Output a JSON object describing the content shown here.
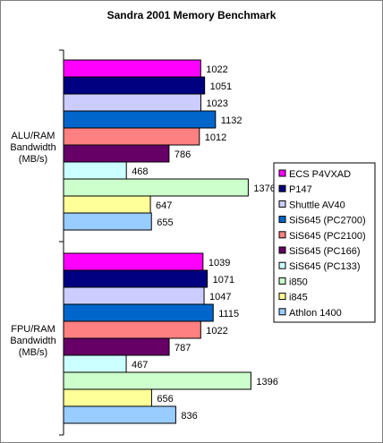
{
  "chart_data": {
    "type": "bar",
    "orientation": "horizontal",
    "title": "Sandra 2001 Memory Benchmark",
    "groups": [
      {
        "label": [
          "ALU/RAM",
          "Bandwidth",
          "(MB/s)"
        ]
      },
      {
        "label": [
          "FPU/RAM",
          "Bandwidth",
          "(MB/s)"
        ]
      }
    ],
    "series": [
      {
        "name": "ECS P4VXAD",
        "color": "#ff00ff",
        "values": [
          1022,
          1039
        ]
      },
      {
        "name": "P147",
        "color": "#000080",
        "values": [
          1051,
          1071
        ]
      },
      {
        "name": "Shuttle AV40",
        "color": "#ccccff",
        "values": [
          1023,
          1047
        ]
      },
      {
        "name": "SiS645 (PC2700)",
        "color": "#0066cc",
        "values": [
          1132,
          1115
        ]
      },
      {
        "name": "SiS645 (PC2100)",
        "color": "#ff8080",
        "values": [
          1012,
          1022
        ]
      },
      {
        "name": "SiS645 (PC166)",
        "color": "#660066",
        "values": [
          786,
          787
        ]
      },
      {
        "name": "SiS645 (PC133)",
        "color": "#ccffff",
        "values": [
          468,
          467
        ]
      },
      {
        "name": "i850",
        "color": "#ccffcc",
        "values": [
          1376,
          1396
        ]
      },
      {
        "name": "i845",
        "color": "#ffff99",
        "values": [
          647,
          656
        ]
      },
      {
        "name": "Athlon 1400",
        "color": "#99ccff",
        "values": [
          655,
          836
        ]
      }
    ],
    "xlim": [
      0,
      1600
    ],
    "grid": false,
    "legend_position": "right"
  }
}
